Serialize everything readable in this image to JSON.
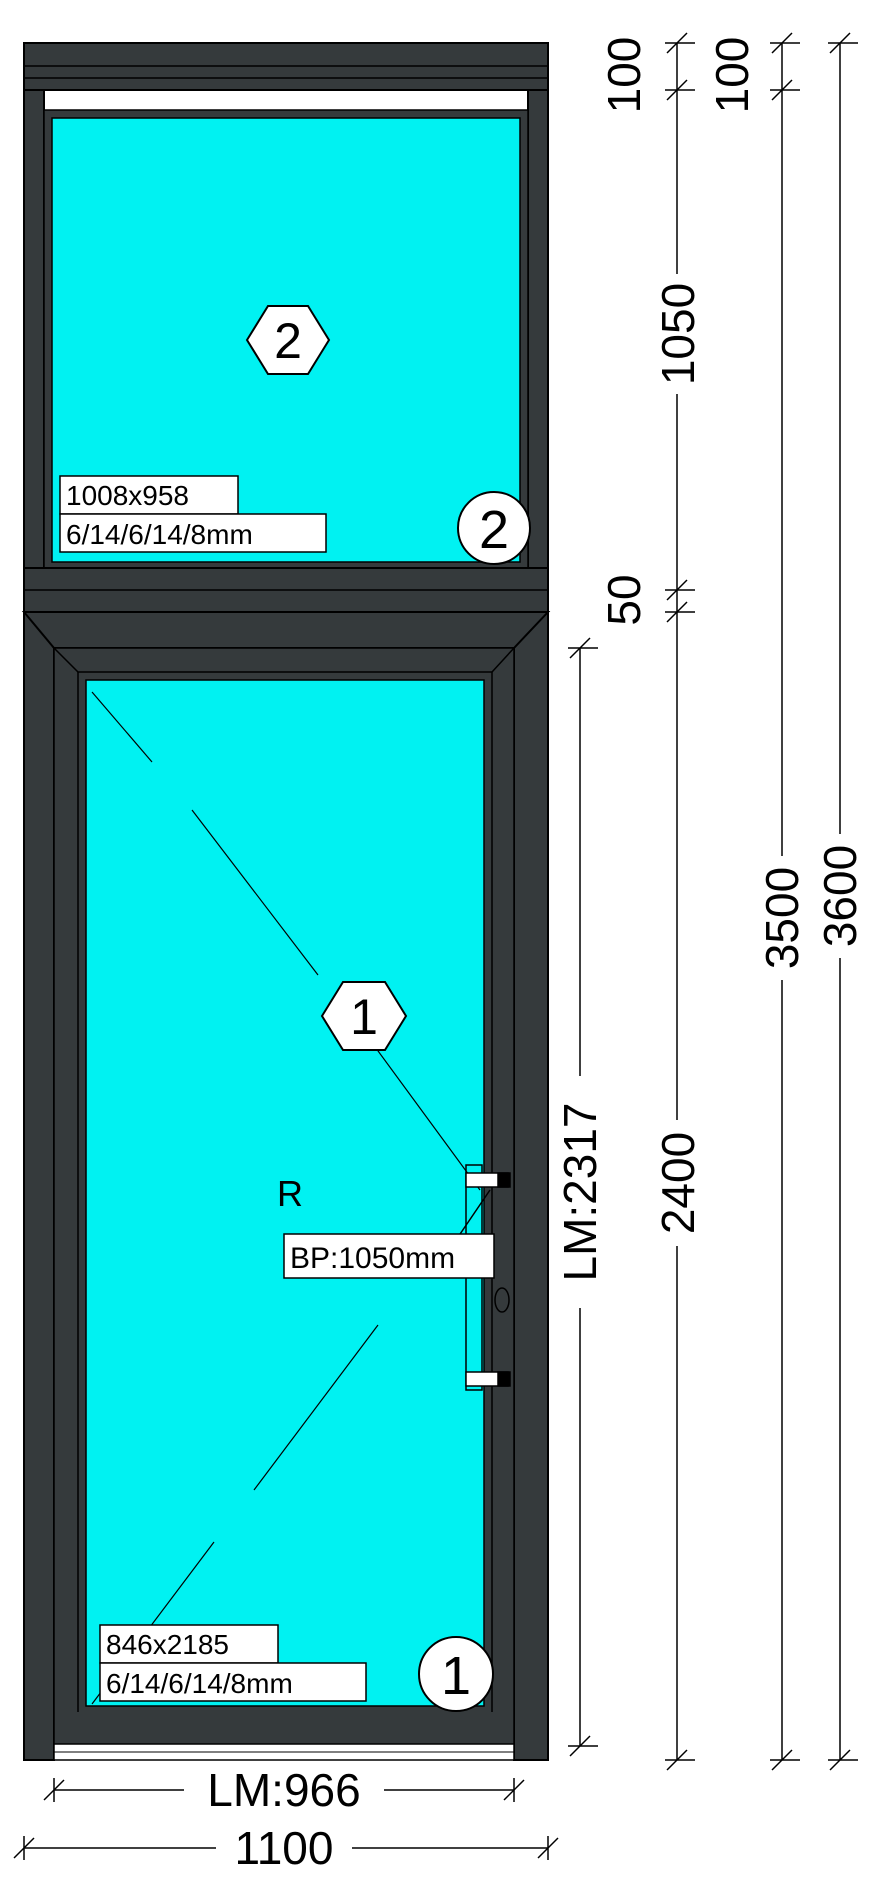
{
  "top_panel": {
    "marker": "2",
    "corner_marker": "2",
    "size": "1008x958",
    "glass": "6/14/6/14/8mm"
  },
  "door_panel": {
    "marker": "1",
    "corner_marker": "1",
    "size": "846x2185",
    "glass": "6/14/6/14/8mm",
    "opening": "R",
    "handle_height": "BP:1050mm"
  },
  "dimensions": {
    "h_seg1": "100",
    "h_seg2": "1050",
    "h_seg3": "50",
    "h_seg4": "2400",
    "h_top_b": "100",
    "h_total_3500": "3500",
    "h_total_3600": "3600",
    "leaf_height": "LM:2317",
    "leaf_width": "LM:966",
    "total_width": "1100"
  },
  "colors": {
    "frame": "#353a3c",
    "glass": "#00f2f2",
    "line": "#000000"
  }
}
